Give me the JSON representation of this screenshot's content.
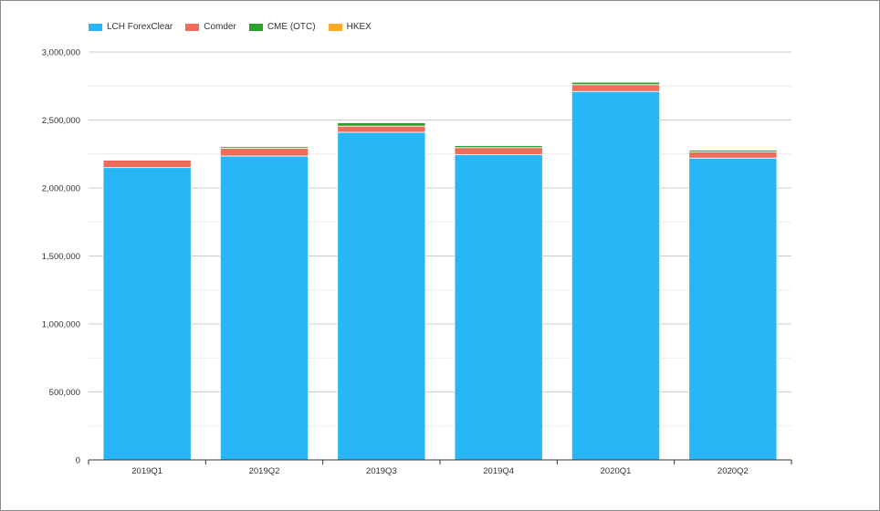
{
  "chart_data": {
    "type": "bar",
    "stacked": true,
    "categories": [
      "2019Q1",
      "2019Q2",
      "2019Q3",
      "2019Q4",
      "2020Q1",
      "2020Q2"
    ],
    "series": [
      {
        "name": "LCH ForexClear",
        "color": "#29b6f6",
        "values": [
          2150000,
          2235000,
          2410000,
          2245000,
          2710000,
          2220000
        ]
      },
      {
        "name": "Comder",
        "color": "#ef6c5a",
        "values": [
          55000,
          57000,
          45000,
          52000,
          50000,
          45000
        ]
      },
      {
        "name": "CME (OTC)",
        "color": "#2ea02c",
        "values": [
          5000,
          12000,
          25000,
          15000,
          18000,
          13000
        ]
      },
      {
        "name": "HKEX",
        "color": "#ffa726",
        "values": [
          3000,
          3000,
          3000,
          3000,
          3000,
          3000
        ]
      }
    ],
    "yticks": [
      "0",
      "500,000",
      "1,000,000",
      "1,500,000",
      "2,000,000",
      "2,500,000",
      "3,000,000"
    ],
    "ylim": [
      0,
      3000000
    ],
    "grid": true,
    "legend_position": "top-left"
  }
}
